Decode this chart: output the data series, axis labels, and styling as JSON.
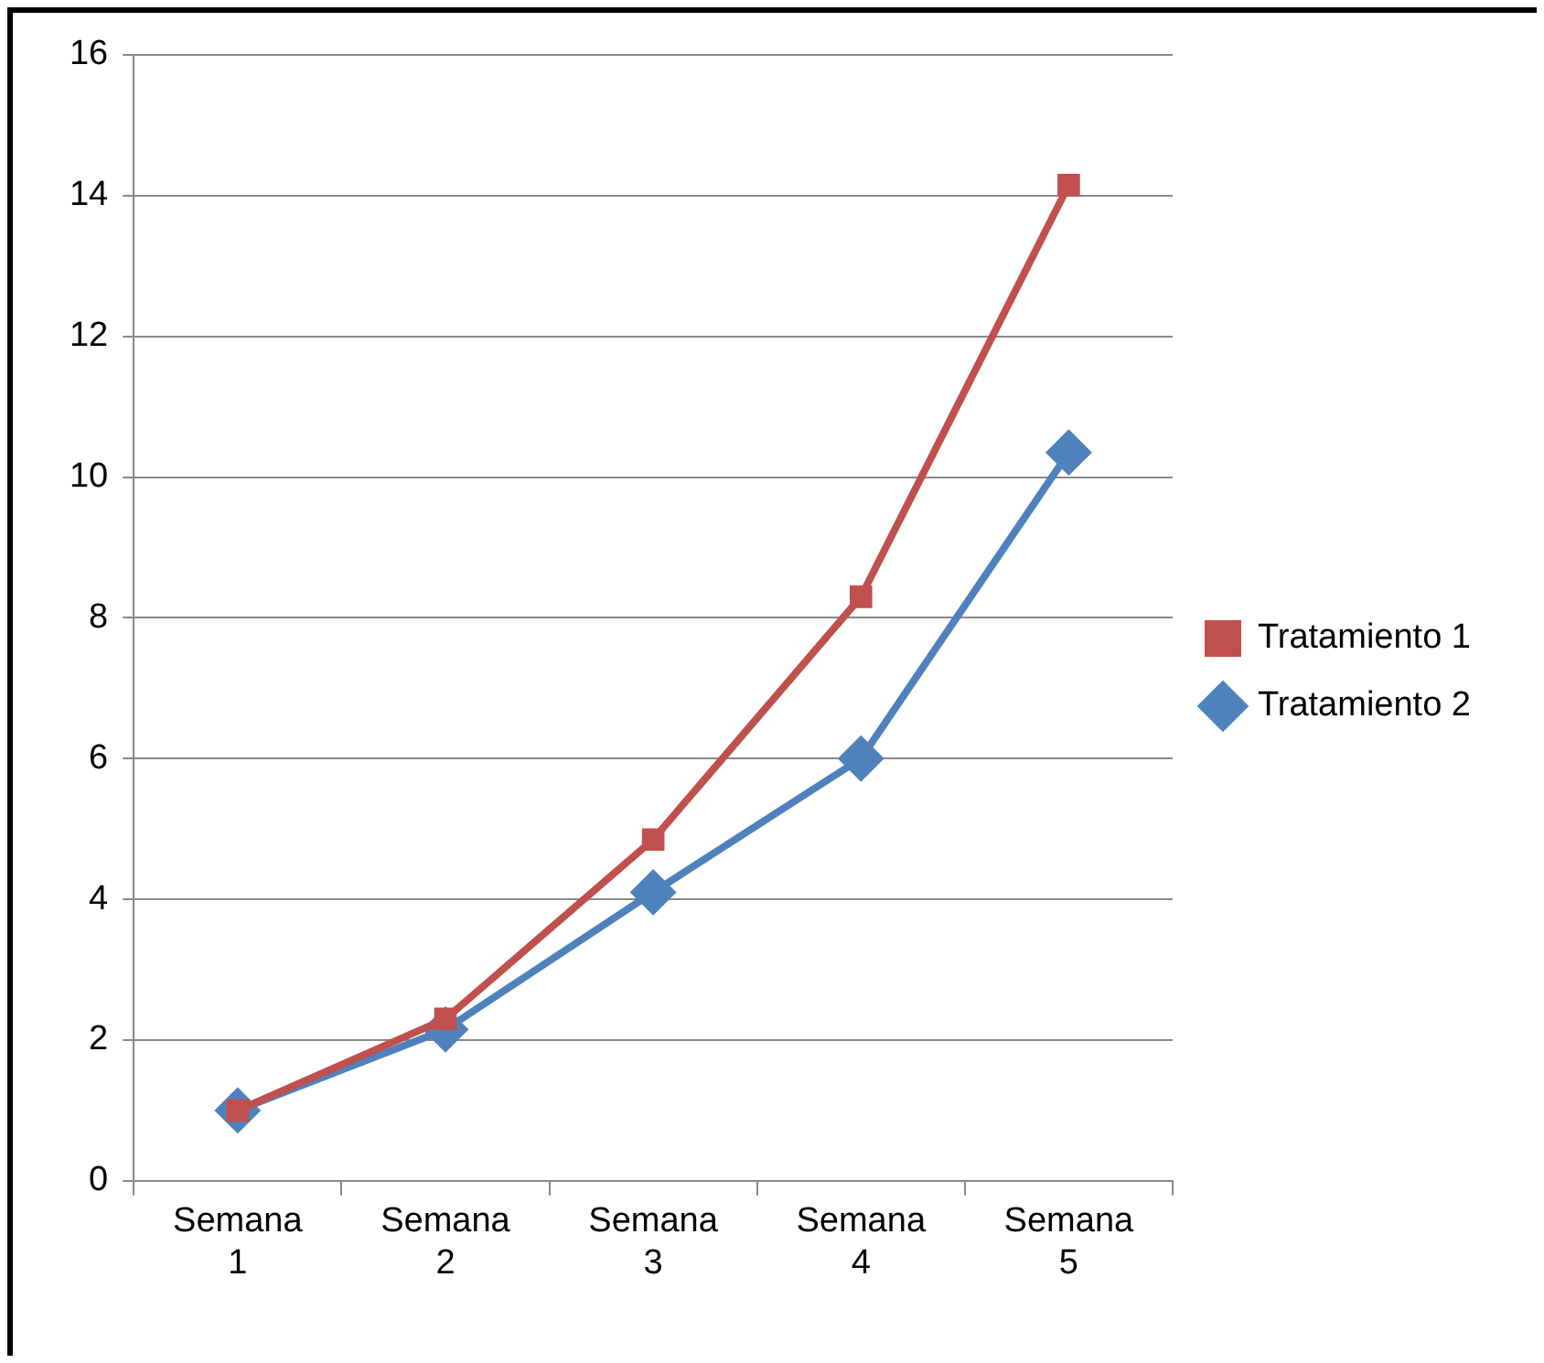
{
  "chart_data": {
    "type": "line",
    "categories": [
      "Semana 1",
      "Semana 2",
      "Semana 3",
      "Semana 4",
      "Semana 5"
    ],
    "series": [
      {
        "name": "Tratamiento 1",
        "color": "#c0504d",
        "marker": "square",
        "values": [
          1.0,
          2.3,
          4.85,
          8.3,
          14.15
        ]
      },
      {
        "name": "Tratamiento 2",
        "color": "#4f81bd",
        "marker": "diamond",
        "values": [
          1.0,
          2.15,
          4.1,
          6.0,
          10.35
        ]
      }
    ],
    "ylim": [
      0,
      16
    ],
    "yticks": [
      0,
      2,
      4,
      6,
      8,
      10,
      12,
      14,
      16
    ],
    "grid": "y",
    "legend": "right",
    "line_style": "solid"
  }
}
